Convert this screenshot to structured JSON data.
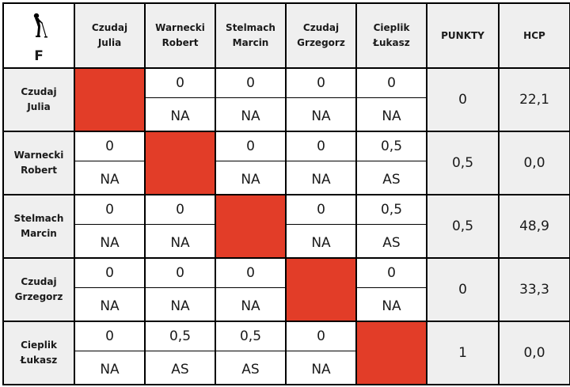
{
  "corner": {
    "label": "F",
    "icon": "golfer-icon"
  },
  "columns": [
    {
      "first": "Czudaj",
      "second": "Julia"
    },
    {
      "first": "Warnecki",
      "second": "Robert"
    },
    {
      "first": "Stelmach",
      "second": "Marcin"
    },
    {
      "first": "Czudaj",
      "second": "Grzegorz"
    },
    {
      "first": "Cieplik",
      "second": "Łukasz"
    }
  ],
  "points_header": "PUNKTY",
  "hcp_header": "HCP",
  "rows": [
    {
      "first": "Czudaj",
      "second": "Julia",
      "cells": [
        null,
        {
          "score": "0",
          "result": "NA"
        },
        {
          "score": "0",
          "result": "NA"
        },
        {
          "score": "0",
          "result": "NA"
        },
        {
          "score": "0",
          "result": "NA"
        }
      ],
      "points": "0",
      "hcp": "22,1"
    },
    {
      "first": "Warnecki",
      "second": "Robert",
      "cells": [
        {
          "score": "0",
          "result": "NA"
        },
        null,
        {
          "score": "0",
          "result": "NA"
        },
        {
          "score": "0",
          "result": "NA"
        },
        {
          "score": "0,5",
          "result": "AS"
        }
      ],
      "points": "0,5",
      "hcp": "0,0"
    },
    {
      "first": "Stelmach",
      "second": "Marcin",
      "cells": [
        {
          "score": "0",
          "result": "NA"
        },
        {
          "score": "0",
          "result": "NA"
        },
        null,
        {
          "score": "0",
          "result": "NA"
        },
        {
          "score": "0,5",
          "result": "AS"
        }
      ],
      "points": "0,5",
      "hcp": "48,9"
    },
    {
      "first": "Czudaj",
      "second": "Grzegorz",
      "cells": [
        {
          "score": "0",
          "result": "NA"
        },
        {
          "score": "0",
          "result": "NA"
        },
        {
          "score": "0",
          "result": "NA"
        },
        null,
        {
          "score": "0",
          "result": "NA"
        }
      ],
      "points": "0",
      "hcp": "33,3"
    },
    {
      "first": "Cieplik",
      "second": "Łukasz",
      "cells": [
        {
          "score": "0",
          "result": "NA"
        },
        {
          "score": "0,5",
          "result": "AS"
        },
        {
          "score": "0,5",
          "result": "AS"
        },
        {
          "score": "0",
          "result": "NA"
        },
        null
      ],
      "points": "1",
      "hcp": "0,0"
    }
  ],
  "colors": {
    "diagonal": "#e23d28",
    "header_bg": "#efefef",
    "grid": "#000000"
  }
}
